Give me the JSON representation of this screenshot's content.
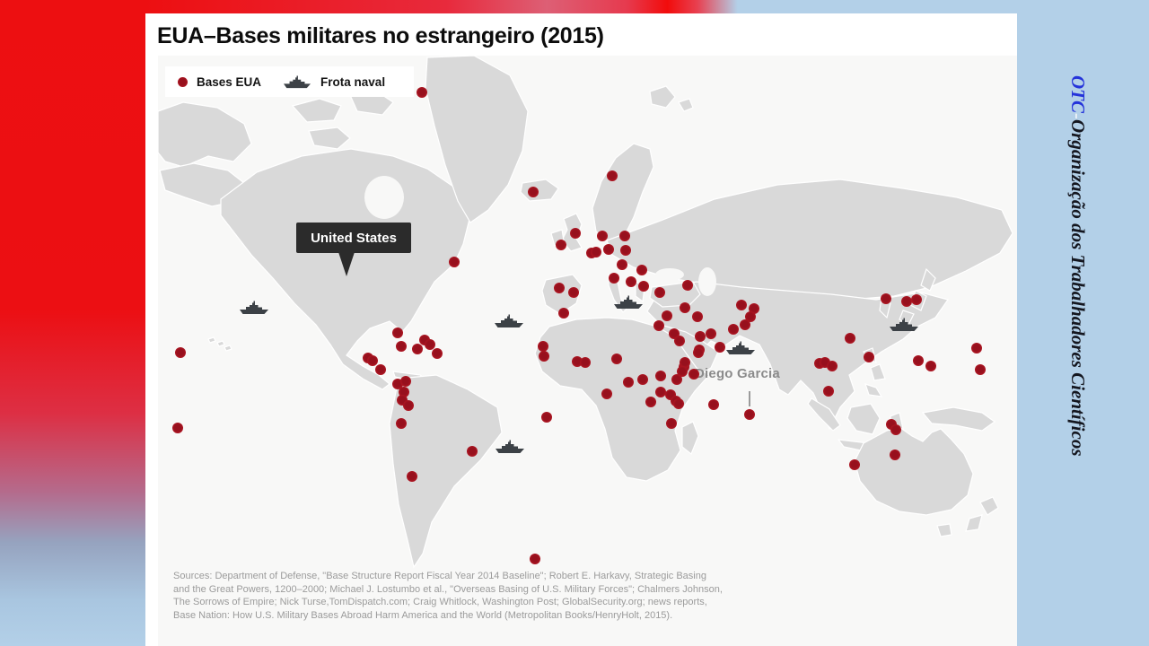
{
  "title": "EUA–Bases militares no estrangeiro (2015)",
  "branding": {
    "acronym": "OTC",
    "separator": "-",
    "name": "Organização dos Trabalhadores Científicos"
  },
  "legend": {
    "bases_label": "Bases EUA",
    "fleet_label": "Frota naval"
  },
  "map_labels": {
    "united_states": "United States",
    "diego_garcia": "Diego Garcia"
  },
  "sources": {
    "line1": "Sources: Department of Defense, \"Base Structure Report Fiscal Year 2014 Baseline\"; Robert E. Harkavy, Strategic Basing",
    "line2": "and the Great Powers, 1200–2000; Michael J. Lostumbo et al., \"Overseas Basing of U.S. Military Forces\"; Chalmers Johnson,",
    "line3": "The Sorrows of Empire; Nick Turse,TomDispatch.com; Craig Whitlock, Washington Post; GlobalSecurity.org; news reports,",
    "line4": "Base Nation: How U.S. Military Bases Abroad Harm America and the World (Metropolitan Books/HenryHolt, 2015)."
  },
  "colors": {
    "accent_red": "#ed0f11",
    "panel_blue": "#b3d0e8",
    "dot": "#b01622",
    "land": "#d9d9d9",
    "ship": "#3c4146",
    "callout_bg": "#2b2b2b"
  },
  "map_points": {
    "coordinate_space": [
      957,
      658
    ],
    "bases": [
      [
        294,
        41
      ],
      [
        418,
        152
      ],
      [
        506,
        134
      ],
      [
        330,
        230
      ],
      [
        25,
        331
      ],
      [
        22,
        415
      ],
      [
        267,
        309
      ],
      [
        271,
        324
      ],
      [
        289,
        327
      ],
      [
        297,
        317
      ],
      [
        303,
        322
      ],
      [
        311,
        332
      ],
      [
        234,
        337
      ],
      [
        239,
        340
      ],
      [
        248,
        350
      ],
      [
        267,
        366
      ],
      [
        276,
        363
      ],
      [
        274,
        375
      ],
      [
        272,
        384
      ],
      [
        279,
        390
      ],
      [
        271,
        410
      ],
      [
        350,
        441
      ],
      [
        283,
        469
      ],
      [
        420,
        561
      ],
      [
        433,
        403
      ],
      [
        449,
        211
      ],
      [
        465,
        198
      ],
      [
        495,
        201
      ],
      [
        520,
        201
      ],
      [
        483,
        220
      ],
      [
        488,
        219
      ],
      [
        502,
        216
      ],
      [
        521,
        217
      ],
      [
        517,
        233
      ],
      [
        539,
        239
      ],
      [
        508,
        248
      ],
      [
        527,
        252
      ],
      [
        541,
        257
      ],
      [
        447,
        259
      ],
      [
        463,
        264
      ],
      [
        452,
        287
      ],
      [
        559,
        264
      ],
      [
        590,
        256
      ],
      [
        567,
        290
      ],
      [
        587,
        281
      ],
      [
        601,
        291
      ],
      [
        558,
        301
      ],
      [
        575,
        310
      ],
      [
        581,
        318
      ],
      [
        604,
        313
      ],
      [
        616,
        310
      ],
      [
        603,
        328
      ],
      [
        626,
        325
      ],
      [
        586,
        347
      ],
      [
        650,
        278
      ],
      [
        664,
        282
      ],
      [
        660,
        291
      ],
      [
        654,
        300
      ],
      [
        641,
        305
      ],
      [
        429,
        324
      ],
      [
        430,
        335
      ],
      [
        467,
        341
      ],
      [
        476,
        342
      ],
      [
        511,
        338
      ],
      [
        524,
        364
      ],
      [
        540,
        361
      ],
      [
        560,
        357
      ],
      [
        578,
        361
      ],
      [
        587,
        342
      ],
      [
        584,
        352
      ],
      [
        597,
        355
      ],
      [
        602,
        331
      ],
      [
        500,
        377
      ],
      [
        549,
        386
      ],
      [
        560,
        375
      ],
      [
        571,
        378
      ],
      [
        577,
        385
      ],
      [
        580,
        388
      ],
      [
        619,
        389
      ],
      [
        572,
        410
      ],
      [
        659,
        400
      ],
      [
        811,
        271
      ],
      [
        834,
        274
      ],
      [
        845,
        272
      ],
      [
        771,
        315
      ],
      [
        792,
        336
      ],
      [
        737,
        343
      ],
      [
        743,
        342
      ],
      [
        751,
        346
      ],
      [
        747,
        374
      ],
      [
        817,
        411
      ],
      [
        847,
        340
      ],
      [
        861,
        346
      ],
      [
        912,
        326
      ],
      [
        916,
        350
      ],
      [
        822,
        417
      ],
      [
        821,
        445
      ],
      [
        776,
        456
      ]
    ],
    "fleets": [
      [
        107,
        281
      ],
      [
        391,
        296
      ],
      [
        524,
        275
      ],
      [
        649,
        326
      ],
      [
        392,
        436
      ],
      [
        831,
        300
      ]
    ]
  }
}
